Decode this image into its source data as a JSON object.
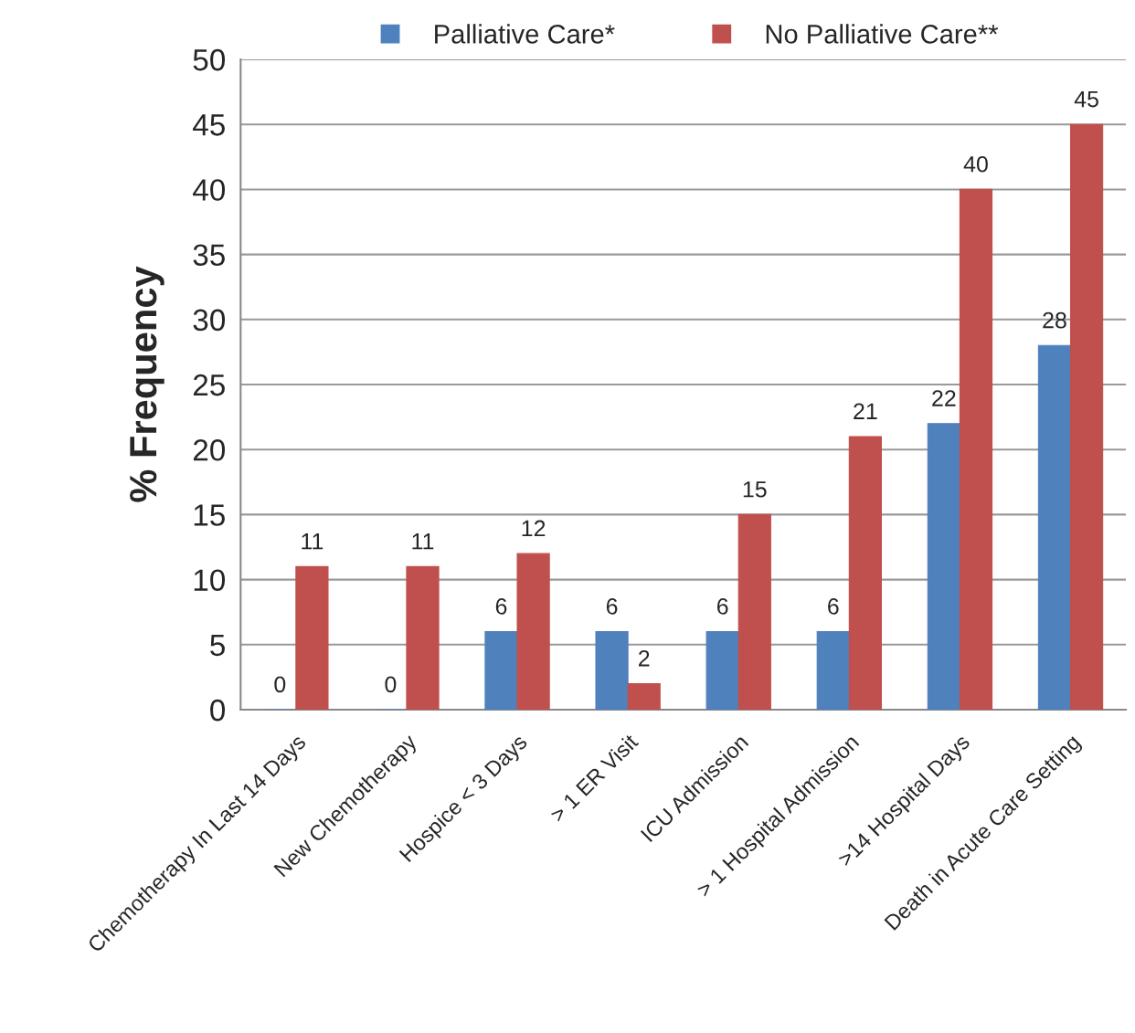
{
  "chart_data": {
    "type": "bar",
    "ylabel": "% Frequency",
    "categories": [
      "Chemotherapy In Last 14 Days",
      "New Chemotherapy",
      "Hospice < 3 Days",
      "> 1 ER Visit",
      "ICU Admission",
      "> 1 Hospital Admission",
      ">14 Hospital Days",
      "Death in Acute Care Setting"
    ],
    "series": [
      {
        "name": "Palliative Care*",
        "color": "#4f81bd",
        "values": [
          0,
          0,
          6,
          6,
          6,
          6,
          22,
          28
        ]
      },
      {
        "name": "No Palliative Care**",
        "color": "#c0504d",
        "values": [
          11,
          11,
          12,
          2,
          15,
          21,
          40,
          45
        ]
      }
    ],
    "ylim": [
      0,
      50
    ],
    "yticks": [
      0,
      5,
      10,
      15,
      20,
      25,
      30,
      35,
      40,
      45,
      50
    ],
    "grid": "y",
    "legend": "top",
    "data_labels": true
  }
}
